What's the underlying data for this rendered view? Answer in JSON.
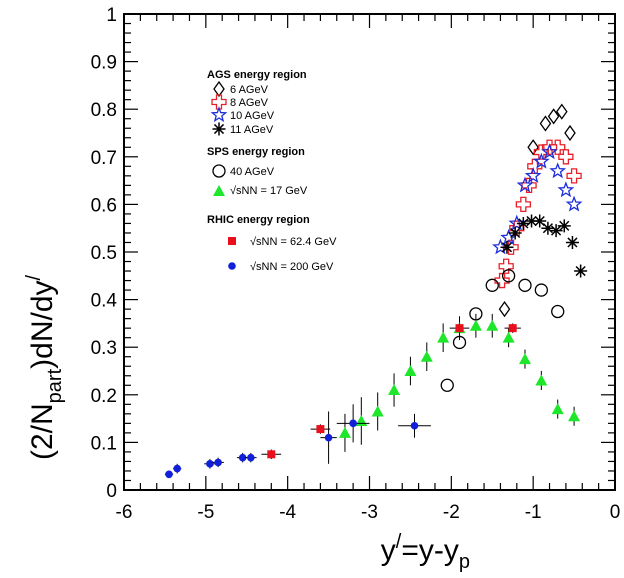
{
  "chart_data": {
    "type": "scatter",
    "xlabel": "y/=y-yp",
    "ylabel": "(2/Npart)dN/dy/",
    "xlim": [
      -6,
      0
    ],
    "ylim": [
      0,
      1
    ],
    "x_ticks": [
      "-6",
      "-5",
      "-4",
      "-3",
      "-2",
      "-1",
      "0"
    ],
    "y_ticks": [
      "0",
      "0.1",
      "0.2",
      "0.3",
      "0.4",
      "0.5",
      "0.6",
      "0.7",
      "0.8",
      "0.9",
      "1"
    ],
    "legend": {
      "placement": "upper-left-center",
      "groups": [
        {
          "title": "AGS energy region",
          "entries": [
            "6 AGeV",
            "8 AGeV",
            "10 AGeV",
            "11 AGeV"
          ]
        },
        {
          "title": "SPS energy region",
          "entries": [
            "40  AGeV",
            "√sNN = 17 GeV"
          ]
        },
        {
          "title": "RHIC energy region",
          "entries": [
            "√sNN = 62.4 GeV",
            "√sNN = 200 GeV"
          ]
        }
      ]
    },
    "series": [
      {
        "name": "6 AGeV",
        "marker": "diamond-open",
        "color": "#000000",
        "points": [
          [
            -1.35,
            0.38
          ],
          [
            -1.0,
            0.72
          ],
          [
            -0.85,
            0.77
          ],
          [
            -0.75,
            0.785
          ],
          [
            -0.65,
            0.795
          ],
          [
            -0.55,
            0.75
          ]
        ]
      },
      {
        "name": "8 AGeV",
        "marker": "cross-open",
        "color": "#e8202a",
        "points": [
          [
            -1.38,
            0.44
          ],
          [
            -1.33,
            0.47
          ],
          [
            -1.27,
            0.51
          ],
          [
            -1.2,
            0.55
          ],
          [
            -1.12,
            0.6
          ],
          [
            -1.05,
            0.64
          ],
          [
            -0.98,
            0.68
          ],
          [
            -0.9,
            0.71
          ],
          [
            -0.8,
            0.72
          ],
          [
            -0.7,
            0.72
          ],
          [
            -0.6,
            0.7
          ],
          [
            -0.5,
            0.66
          ]
        ]
      },
      {
        "name": "10 AGeV",
        "marker": "star-open",
        "color": "#1a2ddb",
        "points": [
          [
            -1.4,
            0.51
          ],
          [
            -1.3,
            0.53
          ],
          [
            -1.2,
            0.56
          ],
          [
            -1.1,
            0.64
          ],
          [
            -1.0,
            0.66
          ],
          [
            -0.9,
            0.69
          ],
          [
            -0.8,
            0.71
          ],
          [
            -0.7,
            0.67
          ],
          [
            -0.6,
            0.63
          ],
          [
            -0.5,
            0.6
          ]
        ]
      },
      {
        "name": "11 AGeV",
        "marker": "asterisk",
        "color": "#000000",
        "points": [
          [
            -1.32,
            0.51
          ],
          [
            -1.22,
            0.54
          ],
          [
            -1.12,
            0.56
          ],
          [
            -1.02,
            0.565
          ],
          [
            -0.92,
            0.565
          ],
          [
            -0.82,
            0.55
          ],
          [
            -0.72,
            0.545
          ],
          [
            -0.62,
            0.555
          ],
          [
            -0.52,
            0.52
          ],
          [
            -0.42,
            0.46
          ]
        ]
      },
      {
        "name": "40  AGeV",
        "marker": "circle-open",
        "color": "#000000",
        "points": [
          [
            -2.05,
            0.22
          ],
          [
            -1.9,
            0.31
          ],
          [
            -1.7,
            0.37
          ],
          [
            -1.5,
            0.43
          ],
          [
            -1.3,
            0.45
          ],
          [
            -1.1,
            0.43
          ],
          [
            -0.9,
            0.42
          ],
          [
            -0.7,
            0.375
          ]
        ]
      },
      {
        "name": "√sNN = 17 GeV",
        "marker": "triangle",
        "color": "#1ee62a",
        "points": [
          [
            -3.3,
            0.12,
            0.04
          ],
          [
            -3.1,
            0.145,
            0.05
          ],
          [
            -2.9,
            0.165,
            0.04
          ],
          [
            -2.7,
            0.21,
            0.035
          ],
          [
            -2.5,
            0.25,
            0.03
          ],
          [
            -2.3,
            0.28,
            0.03
          ],
          [
            -2.1,
            0.32,
            0.03
          ],
          [
            -1.9,
            0.34,
            0.025
          ],
          [
            -1.7,
            0.345,
            0.025
          ],
          [
            -1.5,
            0.345,
            0.025
          ],
          [
            -1.3,
            0.32,
            0.02
          ],
          [
            -1.1,
            0.275,
            0.02
          ],
          [
            -0.9,
            0.23,
            0.02
          ],
          [
            -0.7,
            0.17,
            0.02
          ],
          [
            -0.5,
            0.155,
            0.02
          ]
        ]
      },
      {
        "name": "√sNN = 62.4 GeV",
        "marker": "square",
        "color": "#e8101a",
        "points": [
          [
            -4.2,
            0.075,
            0.01,
            0.12
          ],
          [
            -3.6,
            0.128,
            0.01,
            0.12
          ],
          [
            -1.9,
            0.34,
            0.01,
            0.12
          ],
          [
            -1.25,
            0.34,
            0.01,
            0.1
          ]
        ]
      },
      {
        "name": "√sNN = 200 GeV",
        "marker": "dot",
        "color": "#1020d8",
        "points": [
          [
            -5.45,
            0.033,
            0.008,
            0.05
          ],
          [
            -5.35,
            0.045,
            0.01,
            0.05
          ],
          [
            -4.95,
            0.055,
            0.01,
            0.07
          ],
          [
            -4.85,
            0.058,
            0.01,
            0.07
          ],
          [
            -4.55,
            0.068,
            0.01,
            0.07
          ],
          [
            -4.45,
            0.068,
            0.01,
            0.07
          ],
          [
            -3.5,
            0.11,
            0.055,
            0.1
          ],
          [
            -3.2,
            0.14,
            0.04,
            0.2
          ],
          [
            -2.45,
            0.135,
            0.025,
            0.2
          ]
        ]
      }
    ]
  }
}
